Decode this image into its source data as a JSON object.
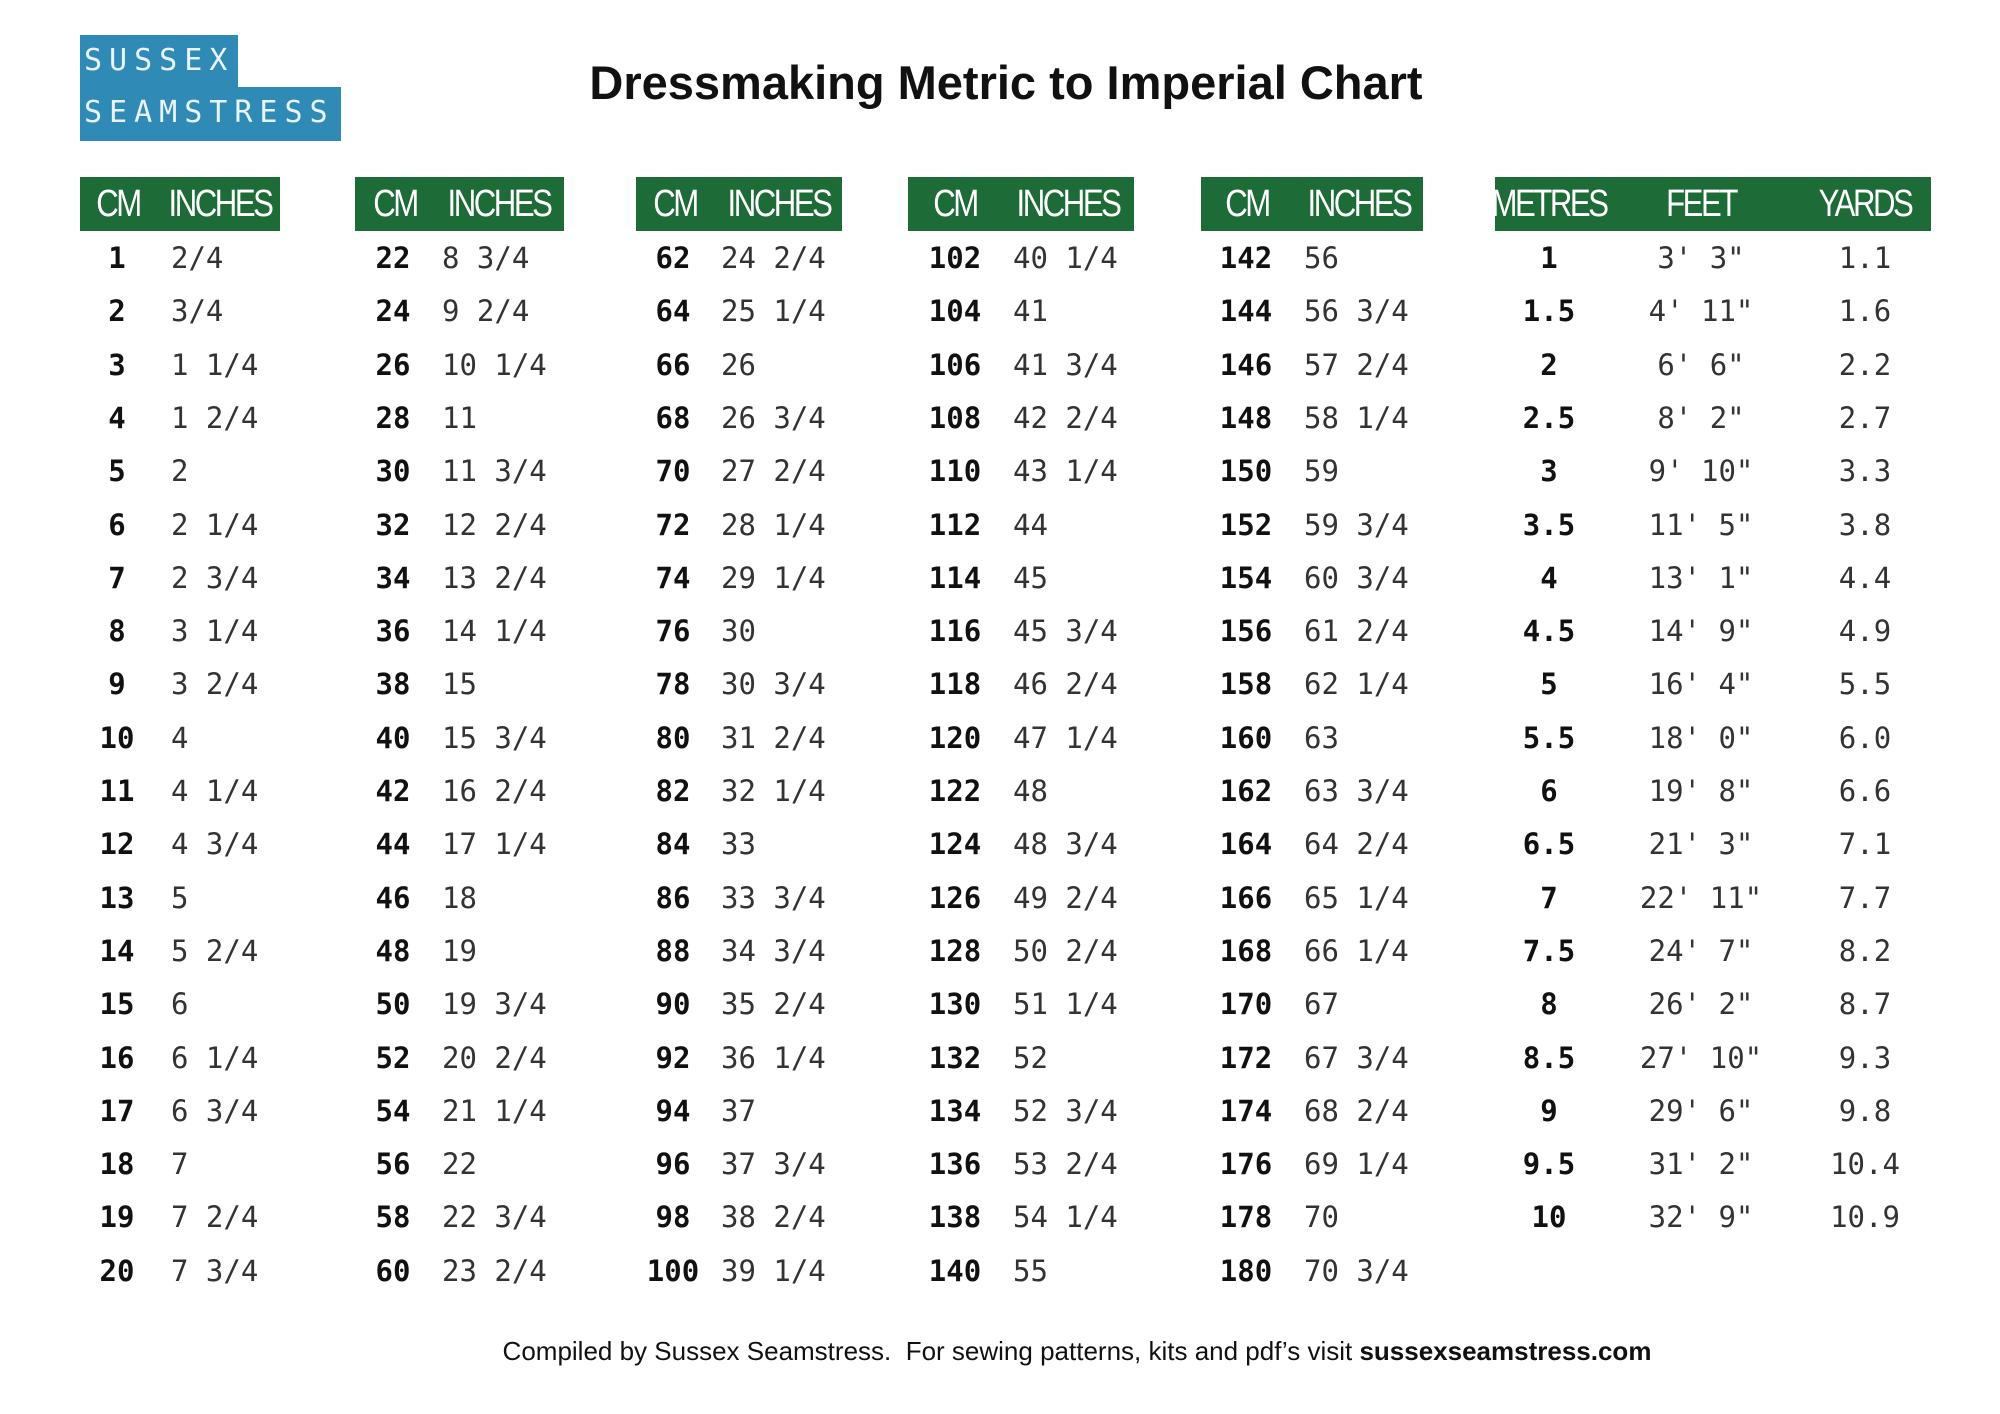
{
  "logo": [
    "SUSSEX",
    "SEAMSTRESS"
  ],
  "header": {
    "title": "Dressmaking Metric to Imperial Chart"
  },
  "tables": [
    {
      "headers": [
        "CM",
        "INCHES"
      ],
      "rows": [
        [
          "1",
          "2/4"
        ],
        [
          "2",
          "3/4"
        ],
        [
          "3",
          "1 1/4"
        ],
        [
          "4",
          "1 2/4"
        ],
        [
          "5",
          "2"
        ],
        [
          "6",
          "2 1/4"
        ],
        [
          "7",
          "2 3/4"
        ],
        [
          "8",
          "3 1/4"
        ],
        [
          "9",
          "3 2/4"
        ],
        [
          "10",
          "4"
        ],
        [
          "11",
          "4 1/4"
        ],
        [
          "12",
          "4 3/4"
        ],
        [
          "13",
          "5"
        ],
        [
          "14",
          "5 2/4"
        ],
        [
          "15",
          "6"
        ],
        [
          "16",
          "6 1/4"
        ],
        [
          "17",
          "6 3/4"
        ],
        [
          "18",
          "7"
        ],
        [
          "19",
          "7 2/4"
        ],
        [
          "20",
          "7 3/4"
        ]
      ]
    },
    {
      "headers": [
        "CM",
        "INCHES"
      ],
      "rows": [
        [
          "22",
          "8 3/4"
        ],
        [
          "24",
          "9 2/4"
        ],
        [
          "26",
          "10 1/4"
        ],
        [
          "28",
          "11"
        ],
        [
          "30",
          "11 3/4"
        ],
        [
          "32",
          "12 2/4"
        ],
        [
          "34",
          "13 2/4"
        ],
        [
          "36",
          "14 1/4"
        ],
        [
          "38",
          "15"
        ],
        [
          "40",
          "15 3/4"
        ],
        [
          "42",
          "16 2/4"
        ],
        [
          "44",
          "17 1/4"
        ],
        [
          "46",
          "18"
        ],
        [
          "48",
          "19"
        ],
        [
          "50",
          "19 3/4"
        ],
        [
          "52",
          "20 2/4"
        ],
        [
          "54",
          "21 1/4"
        ],
        [
          "56",
          "22"
        ],
        [
          "58",
          "22 3/4"
        ],
        [
          "60",
          "23 2/4"
        ]
      ]
    },
    {
      "headers": [
        "CM",
        "INCHES"
      ],
      "rows": [
        [
          "62",
          "24 2/4"
        ],
        [
          "64",
          "25 1/4"
        ],
        [
          "66",
          "26"
        ],
        [
          "68",
          "26 3/4"
        ],
        [
          "70",
          "27 2/4"
        ],
        [
          "72",
          "28 1/4"
        ],
        [
          "74",
          "29 1/4"
        ],
        [
          "76",
          "30"
        ],
        [
          "78",
          "30 3/4"
        ],
        [
          "80",
          "31 2/4"
        ],
        [
          "82",
          "32 1/4"
        ],
        [
          "84",
          "33"
        ],
        [
          "86",
          "33 3/4"
        ],
        [
          "88",
          "34 3/4"
        ],
        [
          "90",
          "35 2/4"
        ],
        [
          "92",
          "36 1/4"
        ],
        [
          "94",
          "37"
        ],
        [
          "96",
          "37 3/4"
        ],
        [
          "98",
          "38 2/4"
        ],
        [
          "100",
          "39 1/4"
        ]
      ]
    },
    {
      "headers": [
        "CM",
        "INCHES"
      ],
      "rows": [
        [
          "102",
          "40 1/4"
        ],
        [
          "104",
          "41"
        ],
        [
          "106",
          "41 3/4"
        ],
        [
          "108",
          "42 2/4"
        ],
        [
          "110",
          "43 1/4"
        ],
        [
          "112",
          "44"
        ],
        [
          "114",
          "45"
        ],
        [
          "116",
          "45 3/4"
        ],
        [
          "118",
          "46 2/4"
        ],
        [
          "120",
          "47 1/4"
        ],
        [
          "122",
          "48"
        ],
        [
          "124",
          "48 3/4"
        ],
        [
          "126",
          "49 2/4"
        ],
        [
          "128",
          "50 2/4"
        ],
        [
          "130",
          "51 1/4"
        ],
        [
          "132",
          "52"
        ],
        [
          "134",
          "52 3/4"
        ],
        [
          "136",
          "53 2/4"
        ],
        [
          "138",
          "54 1/4"
        ],
        [
          "140",
          "55"
        ]
      ]
    },
    {
      "headers": [
        "CM",
        "INCHES"
      ],
      "rows": [
        [
          "142",
          "56"
        ],
        [
          "144",
          "56 3/4"
        ],
        [
          "146",
          "57 2/4"
        ],
        [
          "148",
          "58 1/4"
        ],
        [
          "150",
          "59"
        ],
        [
          "152",
          "59 3/4"
        ],
        [
          "154",
          "60 3/4"
        ],
        [
          "156",
          "61 2/4"
        ],
        [
          "158",
          "62 1/4"
        ],
        [
          "160",
          "63"
        ],
        [
          "162",
          "63 3/4"
        ],
        [
          "164",
          "64 2/4"
        ],
        [
          "166",
          "65 1/4"
        ],
        [
          "168",
          "66 1/4"
        ],
        [
          "170",
          "67"
        ],
        [
          "172",
          "67 3/4"
        ],
        [
          "174",
          "68 2/4"
        ],
        [
          "176",
          "69 1/4"
        ],
        [
          "178",
          "70"
        ],
        [
          "180",
          "70 3/4"
        ]
      ]
    },
    {
      "headers": [
        "METRES",
        "FEET",
        "YARDS"
      ],
      "rows": [
        [
          "1",
          "3' 3\"",
          "1.1"
        ],
        [
          "1.5",
          "4' 11\"",
          "1.6"
        ],
        [
          "2",
          "6' 6\"",
          "2.2"
        ],
        [
          "2.5",
          "8' 2\"",
          "2.7"
        ],
        [
          "3",
          "9' 10\"",
          "3.3"
        ],
        [
          "3.5",
          "11' 5\"",
          "3.8"
        ],
        [
          "4",
          "13' 1\"",
          "4.4"
        ],
        [
          "4.5",
          "14' 9\"",
          "4.9"
        ],
        [
          "5",
          "16' 4\"",
          "5.5"
        ],
        [
          "5.5",
          "18' 0\"",
          "6.0"
        ],
        [
          "6",
          "19' 8\"",
          "6.6"
        ],
        [
          "6.5",
          "21' 3\"",
          "7.1"
        ],
        [
          "7",
          "22' 11\"",
          "7.7"
        ],
        [
          "7.5",
          "24' 7\"",
          "8.2"
        ],
        [
          "8",
          "26' 2\"",
          "8.7"
        ],
        [
          "8.5",
          "27' 10\"",
          "9.3"
        ],
        [
          "9",
          "29' 6\"",
          "9.8"
        ],
        [
          "9.5",
          "31' 2\"",
          "10.4"
        ],
        [
          "10",
          "32' 9\"",
          "10.9"
        ]
      ]
    }
  ],
  "footer": {
    "text": "Compiled by Sussex Seamstress.  For sewing patterns, kits and pdf’s visit",
    "link": "sussexseamstress.com"
  }
}
